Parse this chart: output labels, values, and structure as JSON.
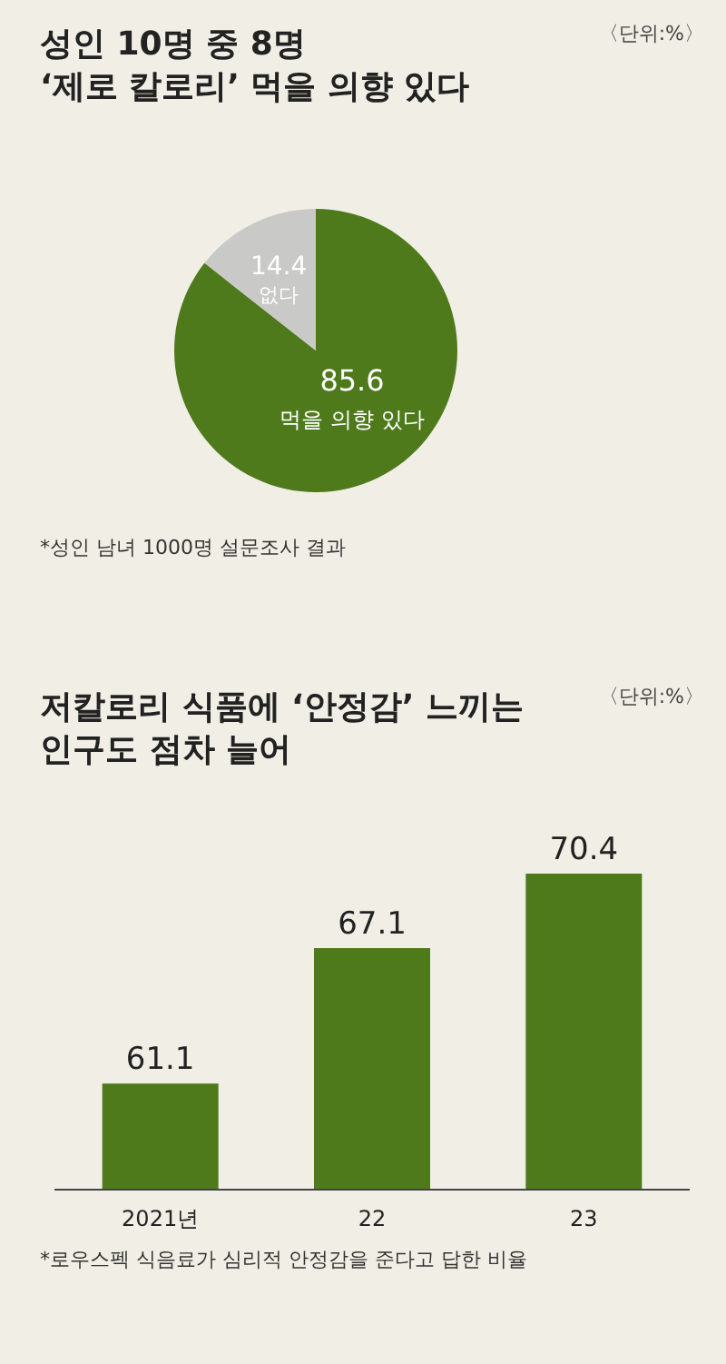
{
  "chart_data": [
    {
      "type": "pie",
      "title": "성인 10명 중 8명\n‘제로 칼로리’ 먹을 의향 있다",
      "categories": [
        "먹을 의향 있다",
        "없다"
      ],
      "values": [
        85.6,
        14.4
      ],
      "colors": [
        "#4e7a1c",
        "#c9c9c7"
      ],
      "data_labels": true,
      "annotations": [
        "〈단위:%〉",
        "*성인 남녀 1000명 설문조사 결과"
      ]
    },
    {
      "type": "bar",
      "title": "저칼로리 식품에 ‘안정감’ 느끼는\n인구도 점차 늘어",
      "categories": [
        "2021년",
        "22",
        "23"
      ],
      "values": [
        61.1,
        67.1,
        70.4
      ],
      "color": "#4e7a1c",
      "ylim": [
        56.4,
        70.4
      ],
      "data_labels": true,
      "tick_labels": "x",
      "annotations": [
        "〈단위:%〉",
        "*로우스펙 식음료가 심리적 안정감을 준다고 답한 비율"
      ]
    }
  ]
}
